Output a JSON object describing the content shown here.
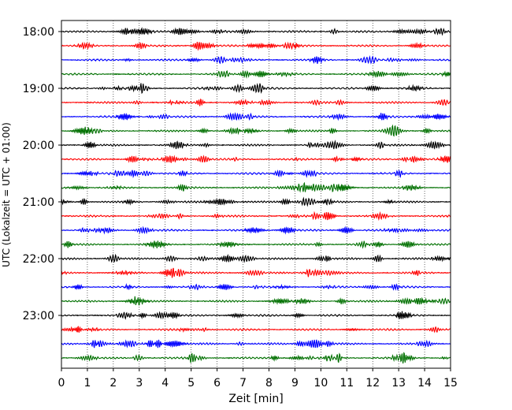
{
  "chart_data": {
    "type": "line",
    "xlabel": "Zeit  [min]",
    "ylabel": "UTC (Lokalzeit = UTC + 01:00)",
    "xlim": [
      0,
      15
    ],
    "x_ticks": [
      "0",
      "1",
      "2",
      "3",
      "4",
      "5",
      "6",
      "7",
      "8",
      "9",
      "10",
      "11",
      "12",
      "13",
      "14",
      "15"
    ],
    "y_ticks": [
      "18:00",
      "19:00",
      "20:00",
      "21:00",
      "22:00",
      "23:00"
    ],
    "grid": "x-dotted",
    "traces_per_hour": 4,
    "trace_minutes": 15,
    "start_hour": 18,
    "hours": 6,
    "trace_colors": [
      "#000000",
      "#ff0000",
      "#0000ff",
      "#007000"
    ]
  }
}
